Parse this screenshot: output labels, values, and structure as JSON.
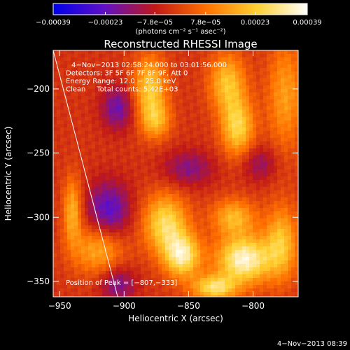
{
  "chart_data": {
    "type": "heatmap",
    "title": "Reconstructed RHESSI Image",
    "xlabel": "Heliocentric X (arcsec)",
    "ylabel": "Heliocentric Y (arcsec)",
    "xlim": [
      -955,
      -765
    ],
    "ylim": [
      -362,
      -170
    ],
    "xticks": [
      -950,
      -900,
      -850,
      -800
    ],
    "xtick_labels": [
      "−950",
      "−900",
      "−850",
      "−800"
    ],
    "yticks": [
      -200,
      -250,
      -300,
      -350
    ],
    "ytick_labels": [
      "−200",
      "−250",
      "−300",
      "−350"
    ],
    "colorbar": {
      "min": -0.00039,
      "max": 0.00039,
      "ticks": [
        -0.00039,
        -0.00023,
        -7.8e-05,
        7.8e-05,
        0.00023,
        0.00039
      ],
      "tick_labels": [
        "−0.00039",
        "−0.00023",
        "−7.8e−05",
        "7.8e−05",
        "0.00023",
        "0.00039"
      ],
      "unit_label": "(photons cm⁻² s⁻¹ asec⁻²)",
      "colormap": [
        "#0000e8",
        "#6010c8",
        "#c01818",
        "#ff7000",
        "#ffd030",
        "#ffffff"
      ]
    },
    "annotations": [
      "4−Nov−2013 02:58:24.000 to 03:01:56.000",
      "Detectors: 3F 5F 6F 7F 8F 9F, Att 0",
      "Energy Range: 12.0 − 25.0 keV",
      "Clean     Total counts: 5.42E+03"
    ],
    "peak_label": "Position of Peak = [−807,−333]",
    "peak": {
      "x": -807,
      "y": -333
    },
    "limb_line": [
      [
        -955,
        -170
      ],
      [
        -905,
        -362
      ]
    ],
    "blobs": [
      {
        "x": -880,
        "y": -200,
        "sx": 9,
        "sy": 18,
        "v": 0.00026
      },
      {
        "x": -875,
        "y": -225,
        "sx": 8,
        "sy": 10,
        "v": 0.00018
      },
      {
        "x": -820,
        "y": -195,
        "sx": 10,
        "sy": 16,
        "v": 0.00024
      },
      {
        "x": -812,
        "y": -230,
        "sx": 9,
        "sy": 16,
        "v": 0.00028
      },
      {
        "x": -775,
        "y": -205,
        "sx": 10,
        "sy": 30,
        "v": 0.00018
      },
      {
        "x": -940,
        "y": -295,
        "sx": 5,
        "sy": 18,
        "v": 0.00022
      },
      {
        "x": -920,
        "y": -325,
        "sx": 14,
        "sy": 14,
        "v": 0.00021
      },
      {
        "x": -868,
        "y": -305,
        "sx": 12,
        "sy": 16,
        "v": 0.0003
      },
      {
        "x": -855,
        "y": -330,
        "sx": 10,
        "sy": 12,
        "v": 0.00034
      },
      {
        "x": -815,
        "y": -300,
        "sx": 12,
        "sy": 10,
        "v": 0.00022
      },
      {
        "x": -807,
        "y": -333,
        "sx": 15,
        "sy": 13,
        "v": 0.00039
      },
      {
        "x": -830,
        "y": -355,
        "sx": 12,
        "sy": 7,
        "v": 0.0003
      },
      {
        "x": -778,
        "y": -320,
        "sx": 9,
        "sy": 20,
        "v": 0.00024
      },
      {
        "x": -905,
        "y": -215,
        "sx": 9,
        "sy": 12,
        "v": -0.00018
      },
      {
        "x": -912,
        "y": -295,
        "sx": 12,
        "sy": 16,
        "v": -0.00022
      },
      {
        "x": -850,
        "y": -262,
        "sx": 14,
        "sy": 10,
        "v": -0.00014
      },
      {
        "x": -795,
        "y": -258,
        "sx": 10,
        "sy": 10,
        "v": -0.00012
      },
      {
        "x": -905,
        "y": -352,
        "sx": 10,
        "sy": 10,
        "v": -0.00016
      }
    ]
  },
  "footer_timestamp": "4−Nov−2013 08:39"
}
